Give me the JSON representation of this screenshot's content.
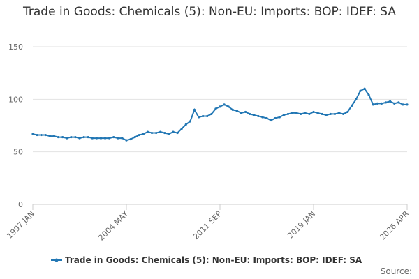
{
  "chart_data": {
    "type": "line",
    "title": "Trade in Goods: Chemicals (5): Non-EU: Imports: BOP: IDEF: SA",
    "source": "Source:",
    "categories": [
      "1997 JAN",
      null,
      null,
      null,
      null,
      null,
      null,
      null,
      null,
      null,
      null,
      null,
      null,
      null,
      null,
      null,
      null,
      null,
      null,
      null,
      null,
      null,
      "2004 MAY",
      null,
      null,
      null,
      null,
      null,
      null,
      null,
      null,
      null,
      null,
      null,
      null,
      null,
      null,
      null,
      null,
      null,
      null,
      null,
      null,
      null,
      "2011 SEP",
      null,
      null,
      null,
      null,
      null,
      null,
      null,
      null,
      null,
      null,
      null,
      null,
      null,
      null,
      null,
      null,
      null,
      null,
      null,
      null,
      null,
      "2019 JAN",
      null,
      null,
      null,
      null,
      null,
      null,
      null,
      null,
      null,
      null,
      null,
      null,
      null,
      null,
      null,
      null,
      null,
      null,
      null,
      null,
      null,
      "2026 APR"
    ],
    "series": [
      {
        "name": "Trade in Goods: Chemicals (5): Non-EU: Imports: BOP: IDEF: SA",
        "color": "#2277b4",
        "values": [
          67,
          66,
          66,
          66,
          65,
          65,
          64,
          64,
          63,
          64,
          64,
          63,
          64,
          64,
          63,
          63,
          63,
          63,
          63,
          64,
          63,
          63,
          61,
          62,
          64,
          66,
          67,
          69,
          68,
          68,
          69,
          68,
          67,
          69,
          68,
          72,
          76,
          79,
          90,
          83,
          84,
          84,
          86,
          91,
          93,
          95,
          93,
          90,
          89,
          87,
          88,
          86,
          85,
          84,
          83,
          82,
          80,
          82,
          83,
          85,
          86,
          87,
          87,
          86,
          87,
          86,
          88,
          87,
          86,
          85,
          86,
          86,
          87,
          86,
          88,
          94,
          100,
          108,
          110,
          104,
          95,
          96,
          96,
          97,
          98,
          96,
          97,
          95,
          95
        ]
      }
    ],
    "ylim": [
      0,
      150
    ],
    "yticks": [
      0,
      50,
      100,
      150
    ],
    "grid": true,
    "legend": "bottom"
  }
}
